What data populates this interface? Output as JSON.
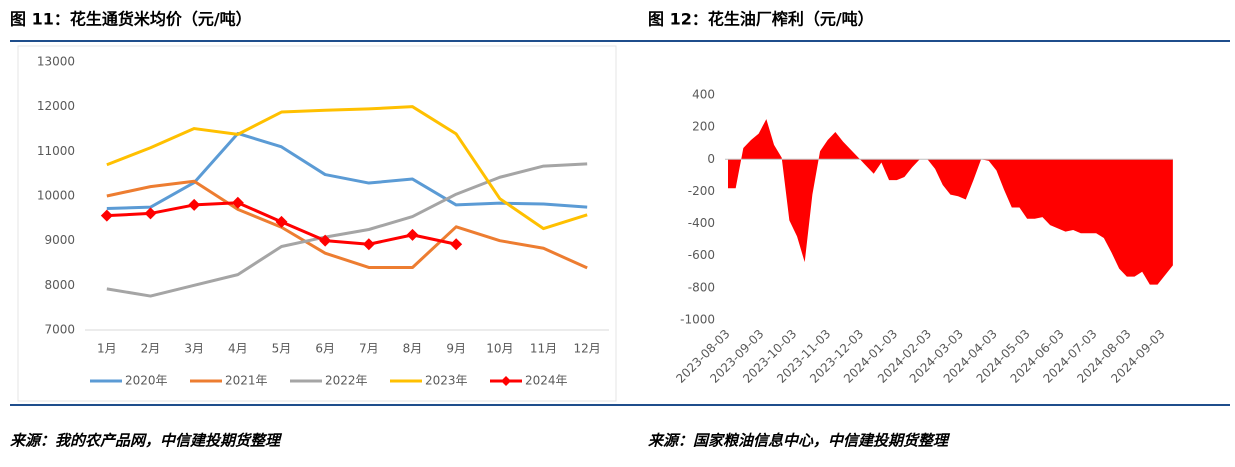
{
  "chart_data": [
    {
      "type": "line",
      "title": "图 11：花生通货米均价（元/吨）",
      "source": "来源：我的农产品网，中信建投期货整理",
      "categories": [
        "1月",
        "2月",
        "3月",
        "4月",
        "5月",
        "6月",
        "7月",
        "8月",
        "9月",
        "10月",
        "11月",
        "12月"
      ],
      "ylim": [
        7000,
        13000
      ],
      "yticks": [
        7000,
        8000,
        9000,
        10000,
        11000,
        12000,
        13000
      ],
      "grid": false,
      "legend": "bottom",
      "series": [
        {
          "name": "2020年",
          "color": "#5b9bd5",
          "values": [
            9720,
            9750,
            10300,
            11400,
            11100,
            10480,
            10290,
            10380,
            9800,
            9840,
            9820,
            9750
          ]
        },
        {
          "name": "2021年",
          "color": "#ed7d31",
          "values": [
            10000,
            10210,
            10330,
            9700,
            9300,
            8720,
            8400,
            8400,
            9310,
            9000,
            8830,
            8390
          ]
        },
        {
          "name": "2022年",
          "color": "#a5a5a5",
          "values": [
            7920,
            7760,
            8000,
            8240,
            8870,
            9080,
            9250,
            9540,
            10040,
            10420,
            10670,
            10720
          ]
        },
        {
          "name": "2023年",
          "color": "#ffc000",
          "values": [
            10700,
            11080,
            11510,
            11380,
            11880,
            11920,
            11950,
            12000,
            11390,
            9940,
            9270,
            9580
          ]
        },
        {
          "name": "2024年",
          "color": "#ff0000",
          "marker": "diamond",
          "values": [
            9560,
            9610,
            9800,
            9850,
            9420,
            9000,
            8920,
            9130,
            8920,
            null,
            null,
            null
          ]
        }
      ]
    },
    {
      "type": "area",
      "title": "图 12：花生油厂榨利（元/吨）",
      "source": "来源：国家粮油信息中心，中信建投期货整理",
      "color": "#ff0000",
      "ylim": [
        -1000,
        400
      ],
      "yticks": [
        -1000,
        -800,
        -600,
        -400,
        -200,
        0,
        200,
        400
      ],
      "grid": false,
      "xticks": [
        "2023-08-03",
        "2023-09-03",
        "2023-10-03",
        "2023-11-03",
        "2023-12-03",
        "2024-01-03",
        "2024-02-03",
        "2024-03-03",
        "2024-04-03",
        "2024-05-03",
        "2024-06-03",
        "2024-07-03",
        "2024-08-03",
        "2024-09-03"
      ],
      "x": [
        "2023-08-03",
        "2023-08-10",
        "2023-08-17",
        "2023-08-24",
        "2023-08-31",
        "2023-09-07",
        "2023-09-14",
        "2023-09-21",
        "2023-09-28",
        "2023-10-05",
        "2023-10-12",
        "2023-10-19",
        "2023-10-26",
        "2023-11-02",
        "2023-11-09",
        "2023-11-16",
        "2023-11-23",
        "2023-11-30",
        "2023-12-07",
        "2023-12-14",
        "2023-12-21",
        "2023-12-28",
        "2024-01-04",
        "2024-01-11",
        "2024-01-18",
        "2024-01-25",
        "2024-02-01",
        "2024-02-08",
        "2024-02-15",
        "2024-02-22",
        "2024-02-29",
        "2024-03-07",
        "2024-03-14",
        "2024-03-21",
        "2024-03-28",
        "2024-04-04",
        "2024-04-11",
        "2024-04-18",
        "2024-04-25",
        "2024-05-02",
        "2024-05-09",
        "2024-05-16",
        "2024-05-23",
        "2024-05-30",
        "2024-06-06",
        "2024-06-13",
        "2024-06-20",
        "2024-06-27",
        "2024-07-04",
        "2024-07-11",
        "2024-07-18",
        "2024-07-25",
        "2024-08-01",
        "2024-08-08",
        "2024-08-15",
        "2024-08-22",
        "2024-08-29",
        "2024-09-05",
        "2024-09-12"
      ],
      "values": [
        -180,
        -180,
        70,
        120,
        160,
        250,
        90,
        10,
        -380,
        -480,
        -640,
        -220,
        50,
        120,
        170,
        110,
        60,
        10,
        -40,
        -90,
        -20,
        -130,
        -130,
        -110,
        -50,
        0,
        0,
        -60,
        -160,
        -220,
        -230,
        -250,
        -130,
        0,
        -10,
        -70,
        -190,
        -300,
        -300,
        -370,
        -370,
        -360,
        -410,
        -430,
        -450,
        -440,
        -460,
        -460,
        -460,
        -490,
        -580,
        -680,
        -730,
        -730,
        -700,
        -780,
        -780,
        -720,
        -660
      ]
    }
  ]
}
